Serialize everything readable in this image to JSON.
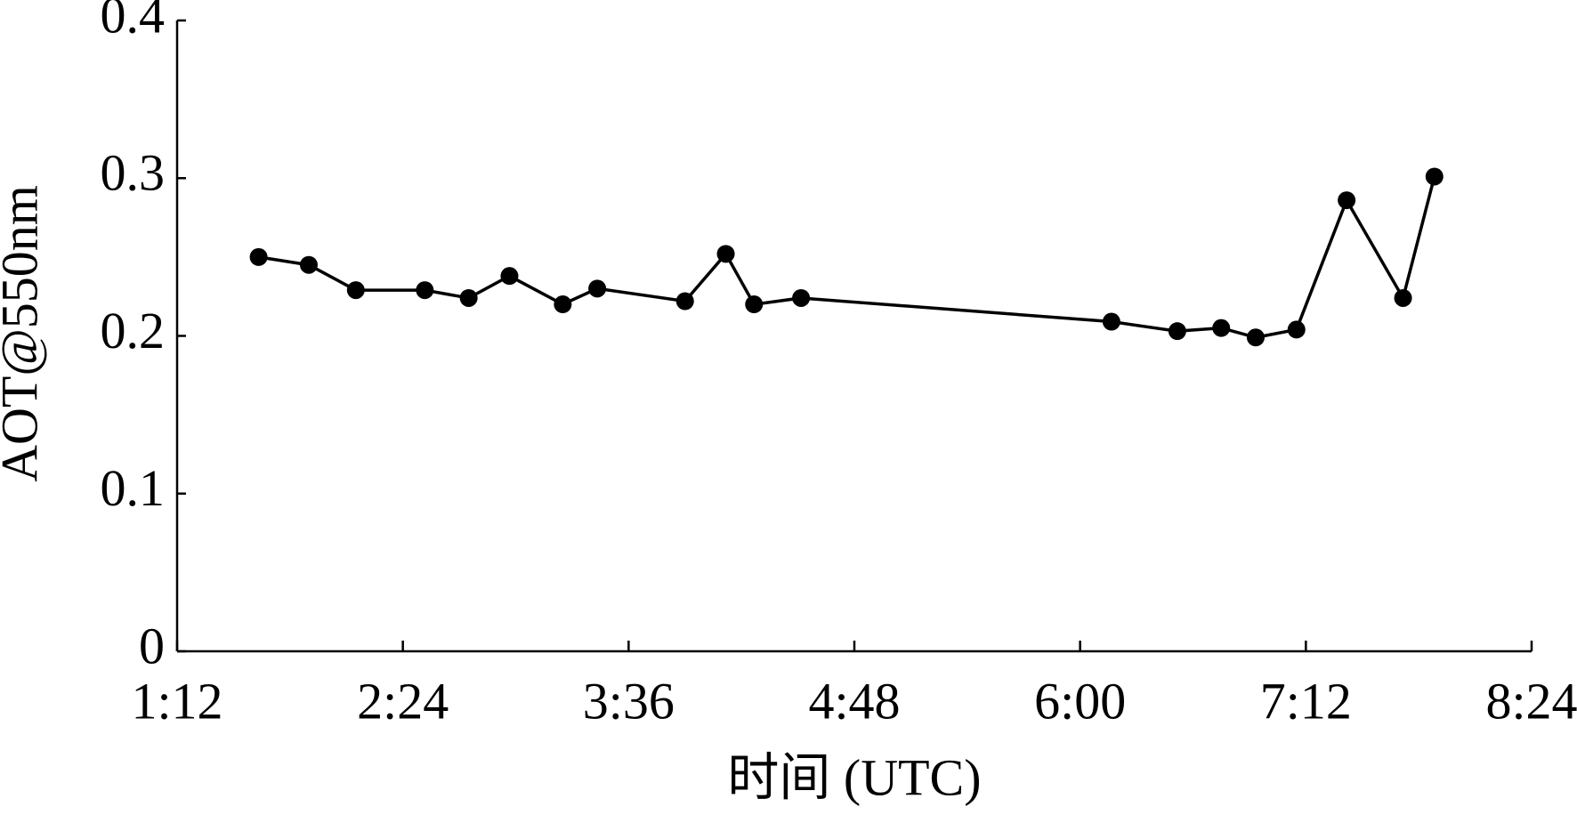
{
  "chart_data": {
    "type": "line",
    "x_label": "时间 (UTC)",
    "y_label": "AOT@550nm",
    "x": [
      98,
      114,
      129,
      151,
      165,
      178,
      195,
      206,
      234,
      247,
      256,
      271,
      370,
      391,
      405,
      416,
      429,
      445,
      463,
      473
    ],
    "series": [
      {
        "color": "#000000",
        "values": [
          0.25,
          0.245,
          0.229,
          0.229,
          0.224,
          0.238,
          0.22,
          0.23,
          0.222,
          0.252,
          0.22,
          0.224,
          0.209,
          0.203,
          0.205,
          0.199,
          0.204,
          0.286,
          0.224,
          0.301
        ]
      }
    ],
    "xlim": [
      72,
      504
    ],
    "xticks": [
      {
        "value": 72,
        "label": "1:12"
      },
      {
        "value": 144,
        "label": "2:24"
      },
      {
        "value": 216,
        "label": "3:36"
      },
      {
        "value": 288,
        "label": "4:48"
      },
      {
        "value": 360,
        "label": "6:00"
      },
      {
        "value": 432,
        "label": "7:12"
      },
      {
        "value": 504,
        "label": "8:24"
      }
    ],
    "ylim": [
      0,
      0.4
    ],
    "yticks": [
      0,
      0.1,
      0.2,
      0.3,
      0.4
    ]
  }
}
